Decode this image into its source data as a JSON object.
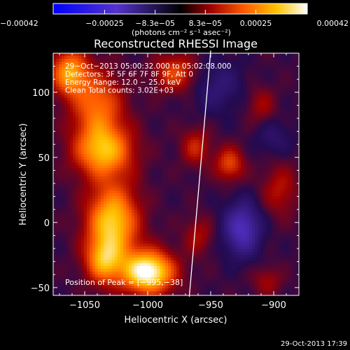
{
  "chart_data": {
    "type": "heatmap",
    "title": "Reconstructed RHESSI Image",
    "xlabel": "Heliocentric X (arcsec)",
    "ylabel": "Heliocentric Y (arcsec)",
    "xlim": [
      -1075,
      -880
    ],
    "ylim": [
      -56,
      130
    ],
    "x_ticks": [
      -1050,
      -1000,
      -950,
      -900
    ],
    "x_tick_labels": [
      "−1050",
      "−1000",
      "−950",
      "−900"
    ],
    "y_ticks": [
      -50,
      0,
      50,
      100
    ],
    "y_tick_labels": [
      "−50",
      "0",
      "50",
      "100"
    ],
    "colorbar": {
      "min": -0.00042,
      "max": 0.00042,
      "ticks": [
        -0.00042,
        -0.00025,
        -8.3e-05,
        8.3e-05,
        0.00025,
        0.00042
      ],
      "tick_labels": [
        "−0.00042",
        "−0.00025",
        "−8.3e−05",
        "8.3e−05",
        "0.00025",
        "0.00042"
      ],
      "unit_label": "(photons cm⁻² s⁻¹ asec⁻²)"
    },
    "info_lines": [
      "29−Oct−2013 05:00:32.000 to 05:02:08.000",
      "Detectors: 3F 5F 6F 7F 8F 9F, Att 0",
      "Energy Range: 12.0 − 25.0 keV",
      "Clean      Total counts: 3.02E+03"
    ],
    "peak_label": "Position of Peak = [−995,−38]",
    "peak": [
      -995,
      -38
    ],
    "limb": [
      [
        -967,
        -57
      ],
      [
        -950,
        132
      ]
    ],
    "sources": [
      {
        "x": -1000,
        "y": -38,
        "value": 0.00042,
        "sx": 14,
        "sy": 11
      },
      {
        "x": -1028,
        "y": 0,
        "value": 0.00032,
        "sx": 14,
        "sy": 20
      },
      {
        "x": -1035,
        "y": 55,
        "value": 0.00028,
        "sx": 16,
        "sy": 14
      },
      {
        "x": -1040,
        "y": 90,
        "value": 0.0002,
        "sx": 14,
        "sy": 18
      },
      {
        "x": -1062,
        "y": 115,
        "value": 0.00026,
        "sx": 10,
        "sy": 12
      },
      {
        "x": -1035,
        "y": -30,
        "value": 0.00022,
        "sx": 10,
        "sy": 12
      },
      {
        "x": -978,
        "y": 115,
        "value": 0.00016,
        "sx": 12,
        "sy": 10
      },
      {
        "x": -962,
        "y": 58,
        "value": 0.00012,
        "sx": 8,
        "sy": 10
      },
      {
        "x": -935,
        "y": 45,
        "value": 0.00016,
        "sx": 8,
        "sy": 9
      },
      {
        "x": -895,
        "y": 25,
        "value": 0.0001,
        "sx": 10,
        "sy": 14
      },
      {
        "x": -960,
        "y": -10,
        "value": 9e-05,
        "sx": 8,
        "sy": 10
      },
      {
        "x": -905,
        "y": -45,
        "value": 8e-05,
        "sx": 8,
        "sy": 8
      },
      {
        "x": -910,
        "y": 90,
        "value": 8e-05,
        "sx": 8,
        "sy": 10
      },
      {
        "x": -925,
        "y": -5,
        "value": -0.0002,
        "sx": 10,
        "sy": 14
      },
      {
        "x": -945,
        "y": 105,
        "value": -8e-05,
        "sx": 14,
        "sy": 14
      },
      {
        "x": -900,
        "y": 65,
        "value": -6e-05,
        "sx": 10,
        "sy": 10
      }
    ]
  },
  "footer": {
    "timestamp": "29-Oct-2013 17:39"
  }
}
